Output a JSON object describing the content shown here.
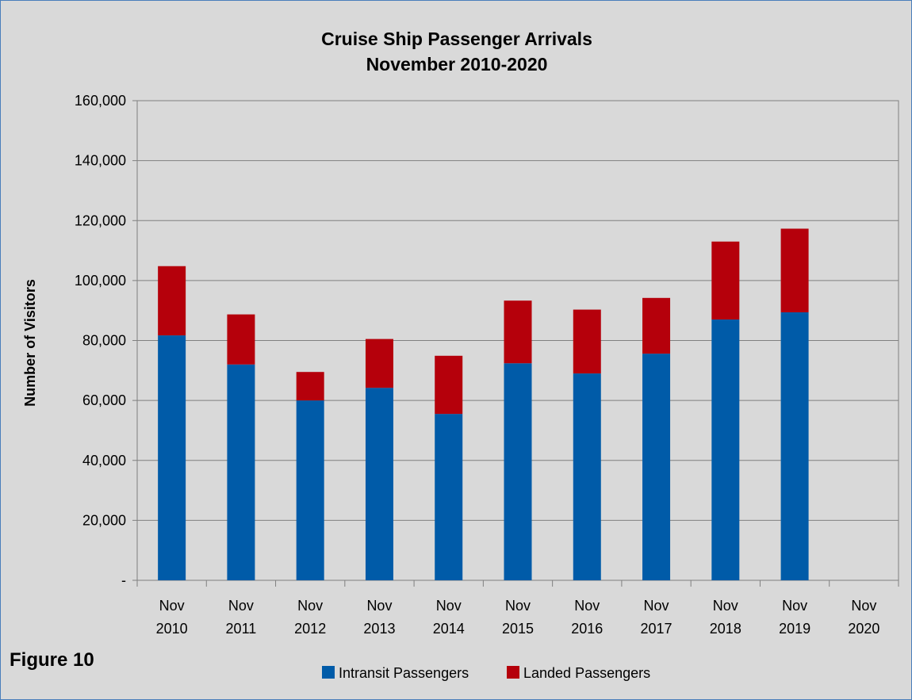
{
  "figure_label": "Figure 10",
  "chart_data": {
    "type": "bar",
    "stacked": true,
    "title": [
      "Cruise Ship Passenger Arrivals",
      "November 2010-2020"
    ],
    "ylabel": "Number of Visitors",
    "xlabel": "",
    "ylim": [
      0,
      160000
    ],
    "yticks": [
      0,
      20000,
      40000,
      60000,
      80000,
      100000,
      120000,
      140000,
      160000
    ],
    "ytick_labels": [
      "-",
      "20,000",
      "40,000",
      "60,000",
      "80,000",
      "100,000",
      "120,000",
      "140,000",
      "160,000"
    ],
    "grid": true,
    "legend_position": "bottom",
    "categories": [
      [
        "Nov",
        "2010"
      ],
      [
        "Nov",
        "2011"
      ],
      [
        "Nov",
        "2012"
      ],
      [
        "Nov",
        "2013"
      ],
      [
        "Nov",
        "2014"
      ],
      [
        "Nov",
        "2015"
      ],
      [
        "Nov",
        "2016"
      ],
      [
        "Nov",
        "2017"
      ],
      [
        "Nov",
        "2018"
      ],
      [
        "Nov",
        "2019"
      ],
      [
        "Nov",
        "2020"
      ]
    ],
    "series": [
      {
        "name": "Intransit Passengers",
        "color": "#005ba8",
        "values": [
          81700,
          72000,
          60000,
          64200,
          55500,
          72400,
          69000,
          75600,
          87000,
          89400,
          0
        ]
      },
      {
        "name": "Landed Passengers",
        "color": "#b5000b",
        "values": [
          23100,
          16700,
          9500,
          16300,
          19400,
          20900,
          21300,
          18600,
          26000,
          27900,
          0
        ]
      }
    ]
  }
}
